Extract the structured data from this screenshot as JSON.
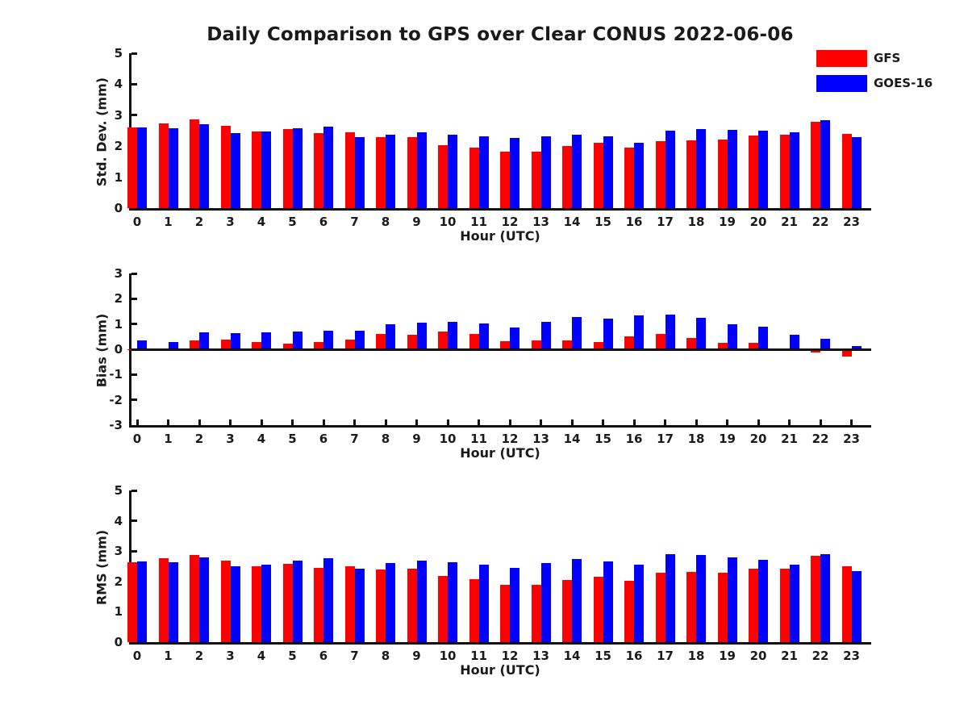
{
  "title": "Daily Comparison to GPS over Clear CONUS 2022-06-06",
  "legend": {
    "items": [
      {
        "label": "GFS",
        "color": "#ff0000"
      },
      {
        "label": "GOES-16",
        "color": "#0000ff"
      }
    ]
  },
  "colors": {
    "gfs": "#ff0000",
    "goes16": "#0000ff",
    "axis": "#111111"
  },
  "chart_data": [
    {
      "type": "bar",
      "ylabel": "Std. Dev. (mm)",
      "xlabel": "Hour (UTC)",
      "categories": [
        "0",
        "1",
        "2",
        "3",
        "4",
        "5",
        "6",
        "7",
        "8",
        "9",
        "10",
        "11",
        "12",
        "13",
        "14",
        "15",
        "16",
        "17",
        "18",
        "19",
        "20",
        "21",
        "22",
        "23"
      ],
      "ylim": [
        0,
        5
      ],
      "yticks": [
        0,
        1,
        2,
        3,
        4,
        5
      ],
      "grid": false,
      "legend_position": "top-right",
      "series": [
        {
          "name": "GFS",
          "color": "#ff0000",
          "values": [
            2.61,
            2.74,
            2.86,
            2.65,
            2.48,
            2.55,
            2.43,
            2.45,
            2.28,
            2.28,
            2.03,
            1.95,
            1.82,
            1.82,
            2.0,
            2.1,
            1.95,
            2.16,
            2.2,
            2.22,
            2.35,
            2.36,
            2.79,
            2.4
          ]
        },
        {
          "name": "GOES-16",
          "color": "#0000ff",
          "values": [
            2.61,
            2.59,
            2.72,
            2.43,
            2.48,
            2.58,
            2.64,
            2.28,
            2.37,
            2.44,
            2.36,
            2.33,
            2.26,
            2.33,
            2.38,
            2.31,
            2.1,
            2.51,
            2.56,
            2.53,
            2.51,
            2.45,
            2.84,
            2.28
          ]
        }
      ]
    },
    {
      "type": "bar",
      "ylabel": "Bias (mm)",
      "xlabel": "Hour (UTC)",
      "categories": [
        "0",
        "1",
        "2",
        "3",
        "4",
        "5",
        "6",
        "7",
        "8",
        "9",
        "10",
        "11",
        "12",
        "13",
        "14",
        "15",
        "16",
        "17",
        "18",
        "19",
        "20",
        "21",
        "22",
        "23"
      ],
      "ylim": [
        -3,
        3
      ],
      "yticks": [
        -3,
        -2,
        -1,
        0,
        1,
        2,
        3
      ],
      "grid": false,
      "zero_line": true,
      "series": [
        {
          "name": "GFS",
          "color": "#ff0000",
          "values": [
            -0.04,
            0.02,
            0.35,
            0.38,
            0.28,
            0.22,
            0.28,
            0.38,
            0.6,
            0.58,
            0.7,
            0.6,
            0.32,
            0.35,
            0.34,
            0.3,
            0.5,
            0.62,
            0.45,
            0.25,
            0.26,
            -0.03,
            -0.12,
            -0.3
          ]
        },
        {
          "name": "GOES-16",
          "color": "#0000ff",
          "values": [
            0.35,
            0.28,
            0.68,
            0.63,
            0.66,
            0.69,
            0.75,
            0.75,
            1.0,
            1.04,
            1.1,
            1.02,
            0.86,
            1.08,
            1.27,
            1.22,
            1.33,
            1.37,
            1.25,
            1.0,
            0.9,
            0.57,
            0.41,
            0.13
          ]
        }
      ]
    },
    {
      "type": "bar",
      "ylabel": "RMS (mm)",
      "xlabel": "Hour (UTC)",
      "categories": [
        "0",
        "1",
        "2",
        "3",
        "4",
        "5",
        "6",
        "7",
        "8",
        "9",
        "10",
        "11",
        "12",
        "13",
        "14",
        "15",
        "16",
        "17",
        "18",
        "19",
        "20",
        "21",
        "22",
        "23"
      ],
      "ylim": [
        0,
        5
      ],
      "yticks": [
        0,
        1,
        2,
        3,
        4,
        5
      ],
      "grid": false,
      "series": [
        {
          "name": "GFS",
          "color": "#ff0000",
          "values": [
            2.63,
            2.76,
            2.88,
            2.68,
            2.5,
            2.58,
            2.45,
            2.5,
            2.39,
            2.42,
            2.18,
            2.08,
            1.89,
            1.89,
            2.05,
            2.16,
            2.03,
            2.29,
            2.32,
            2.29,
            2.42,
            2.42,
            2.84,
            2.5
          ]
        },
        {
          "name": "GOES-16",
          "color": "#0000ff",
          "values": [
            2.66,
            2.63,
            2.79,
            2.5,
            2.55,
            2.68,
            2.76,
            2.42,
            2.6,
            2.68,
            2.63,
            2.55,
            2.45,
            2.6,
            2.74,
            2.66,
            2.55,
            2.9,
            2.88,
            2.79,
            2.71,
            2.55,
            2.9,
            2.34
          ]
        }
      ]
    }
  ]
}
